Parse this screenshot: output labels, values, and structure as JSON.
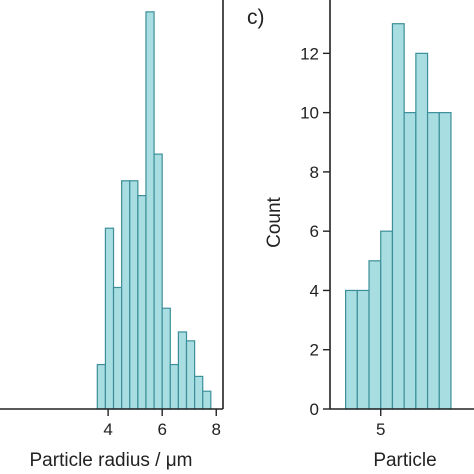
{
  "chart_data": [
    {
      "type": "bar",
      "panel_label": "",
      "xlabel": "Particle radius / μm",
      "ylabel": "",
      "xlim": [
        0,
        8.25
      ],
      "ylim": [
        0,
        13.8
      ],
      "xticks": [
        4,
        6,
        8
      ],
      "yticks": [],
      "bin_width": 0.3,
      "bin_starts": [
        3.6,
        3.9,
        4.2,
        4.5,
        4.8,
        5.1,
        5.4,
        5.7,
        6.0,
        6.3,
        6.6,
        6.9,
        7.2,
        7.5
      ],
      "values": [
        1.5,
        6.1,
        4.1,
        7.7,
        7.7,
        7.2,
        13.4,
        8.6,
        3.4,
        1.5,
        2.6,
        2.3,
        1.1,
        0.6
      ],
      "color": "#a8dde2",
      "edge_color": "#3c8f99"
    },
    {
      "type": "bar",
      "panel_label": "c)",
      "xlabel": "Particle",
      "ylabel": "Count",
      "xlim": [
        4.35,
        6.4
      ],
      "ylim": [
        0,
        13.8
      ],
      "xticks": [
        5
      ],
      "yticks": [
        0,
        2,
        4,
        6,
        8,
        10,
        12
      ],
      "bin_width": 0.15,
      "bin_starts": [
        4.55,
        4.7,
        4.85,
        5.0,
        5.15,
        5.3,
        5.45,
        5.6,
        5.75
      ],
      "values": [
        4,
        4,
        5,
        6,
        13,
        10,
        12,
        10,
        10
      ],
      "color": "#a8dde2",
      "edge_color": "#3c8f99"
    }
  ]
}
